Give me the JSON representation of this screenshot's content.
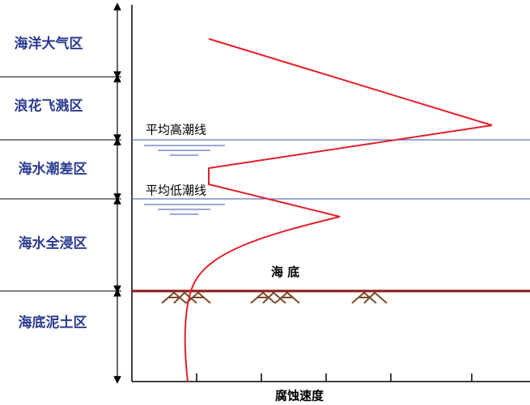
{
  "zones": [
    "海洋大气区",
    "浪花飞溅区",
    "海水潮差区",
    "海水全浸区",
    "海底泥土区"
  ],
  "lines": {
    "high_tide": "平均高潮线",
    "low_tide": "平均低潮线",
    "seabed": "海 底"
  },
  "x_axis_label": "腐蚀速度"
}
